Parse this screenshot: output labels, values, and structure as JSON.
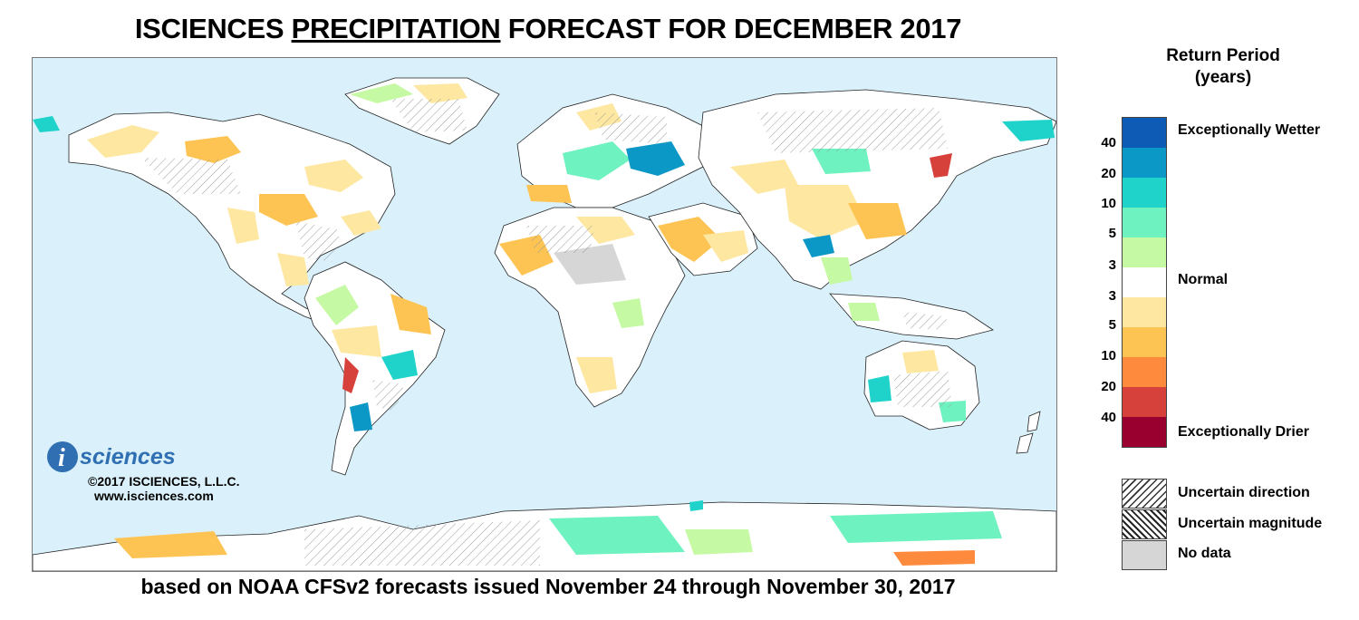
{
  "title": {
    "before": "ISCIENCES ",
    "underlined": "PRECIPITATION",
    "after": " FORECAST FOR DECEMBER 2017"
  },
  "subtitle": "based on NOAA CFSv2 forecasts issued November 24 through November 30, 2017",
  "brand": {
    "logo_letter": "i",
    "logo_text": "sciences",
    "copyright": "©2017 ISCIENCES, L.L.C.",
    "url": "www.isciences.com"
  },
  "legend": {
    "title_line1": "Return Period",
    "title_line2": "(years)",
    "swatches": [
      "#0d5bb5",
      "#0b98c6",
      "#1fd3cb",
      "#6ef2c0",
      "#c6f9a4",
      "#ffffff",
      "#fde7a1",
      "#fdc453",
      "#fd8a3d",
      "#d7413b",
      "#99002f"
    ],
    "ticks": [
      "40",
      "20",
      "10",
      "5",
      "3",
      "3",
      "5",
      "10",
      "20",
      "40"
    ],
    "wet_label": "Exceptionally Wetter",
    "normal_label": "Normal",
    "dry_label": "Exceptionally Drier",
    "uncertain_direction": "Uncertain direction",
    "uncertain_magnitude": "Uncertain magnitude",
    "no_data": "No data"
  },
  "colors": {
    "ocean": "#daf1fb",
    "land": "#ffffff",
    "no_data": "#d6d6d6"
  }
}
